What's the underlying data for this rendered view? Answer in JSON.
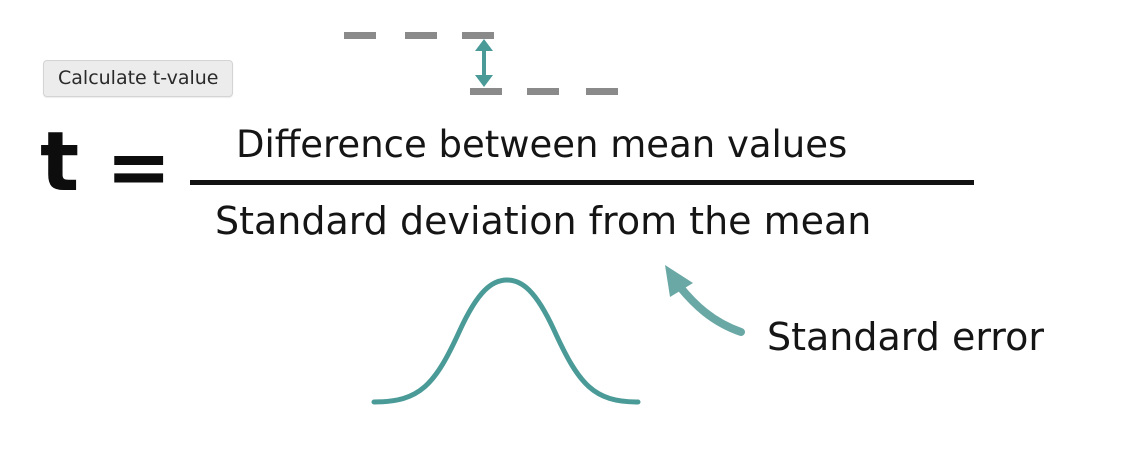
{
  "button": {
    "label": "Calculate t-value"
  },
  "formula": {
    "lhs": "t",
    "equals": "=",
    "numerator": "Difference between mean values",
    "denominator": "Standard deviation from the mean"
  },
  "annotation": {
    "label": "Standard error"
  },
  "icons": {
    "mean_difference": "double-arrow-icon",
    "distribution": "bell-curve-icon",
    "pointer": "curved-arrow-icon"
  },
  "colors": {
    "accent": "#4a9b98",
    "dash": "#8a8a8a",
    "text": "#151515"
  }
}
